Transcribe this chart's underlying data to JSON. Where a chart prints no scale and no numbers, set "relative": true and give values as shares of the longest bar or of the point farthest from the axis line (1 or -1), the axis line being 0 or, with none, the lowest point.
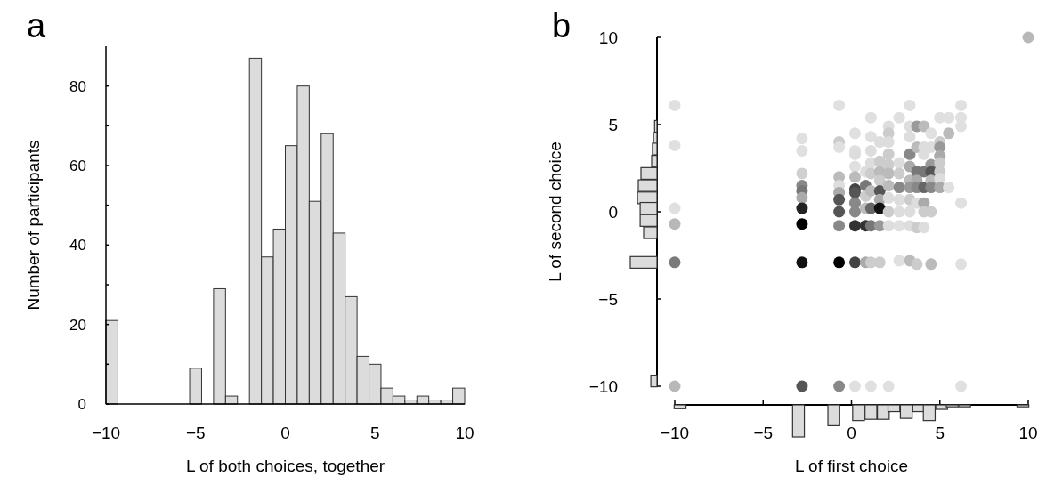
{
  "chart_data": [
    {
      "type": "histogram",
      "title": "a",
      "xlabel": "L of both choices, together",
      "ylabel": "Number of participants",
      "bins": [
        -10,
        -9.333,
        -8.667,
        -8,
        -7.333,
        -6.667,
        -6,
        -5.333,
        -4.667,
        -4,
        -3.333,
        -2.667,
        -2,
        -1.333,
        -0.667,
        0,
        0.667,
        1.333,
        2,
        2.667,
        3.333,
        4,
        4.667,
        5.333,
        6,
        6.667,
        7.333,
        8,
        8.667,
        9.333,
        10
      ],
      "values": [
        21,
        0,
        0,
        0,
        0,
        0,
        0,
        9,
        0,
        29,
        2,
        0,
        87,
        37,
        44,
        65,
        80,
        51,
        68,
        43,
        27,
        12,
        10,
        4,
        2,
        1,
        2,
        1,
        1,
        4
      ],
      "color": "#dcdcdc",
      "xlim": [
        -10,
        10
      ],
      "xticks": [
        -10,
        -5,
        0,
        5,
        10
      ],
      "ylim": [
        0,
        90
      ],
      "yticks": [
        0,
        {
          "value": 10,
          "label": null
        },
        20,
        {
          "value": 30,
          "label": null
        },
        40,
        {
          "value": 50,
          "label": null
        },
        60,
        {
          "value": 70,
          "label": null
        },
        80
      ]
    },
    {
      "type": "scatter",
      "title": "b",
      "xlabel": "L of first choice",
      "ylabel": "L of second choice",
      "marker": "circle",
      "xlim": [
        -10,
        10
      ],
      "xticks": [
        -10,
        -5,
        0,
        5,
        10
      ],
      "ylim": [
        -10,
        10
      ],
      "yticks": [
        -10,
        -5,
        0,
        5,
        10
      ],
      "x": [
        -10,
        -10,
        -10,
        -10,
        -10,
        -10,
        -2.8,
        -2.8,
        -2.8,
        -2.8,
        -2.8,
        -2.8,
        -2.8,
        -2.8,
        -2.8,
        -2.8,
        -0.7,
        -0.7,
        -0.7,
        -0.7,
        -0.7,
        -0.7,
        -0.7,
        -0.7,
        -0.7,
        -0.7,
        -0.7,
        0.2,
        0.2,
        0.2,
        0.2,
        0.2,
        0.2,
        0.2,
        0.2,
        0.2,
        0.2,
        0.2,
        0.2,
        0.8,
        0.8,
        0.8,
        0.8,
        0.8,
        0.8,
        1.1,
        1.1,
        1.1,
        1.1,
        1.1,
        1.1,
        1.1,
        1.1,
        1.1,
        1.1,
        1.6,
        1.6,
        1.6,
        1.6,
        1.6,
        1.6,
        1.6,
        1.6,
        1.6,
        2.1,
        2.1,
        2.1,
        2.1,
        2.1,
        2.1,
        2.1,
        2.1,
        2.1,
        2.1,
        2.1,
        2.7,
        2.7,
        2.7,
        2.7,
        2.7,
        2.7,
        2.7,
        2.7,
        3.3,
        3.3,
        3.3,
        3.3,
        3.3,
        3.3,
        3.3,
        3.3,
        3.3,
        3.3,
        3.3,
        3.7,
        3.7,
        3.7,
        3.7,
        3.7,
        3.7,
        3.7,
        3.7,
        4.1,
        4.1,
        4.1,
        4.1,
        4.1,
        4.1,
        4.1,
        4.1,
        4.5,
        4.5,
        4.5,
        4.5,
        4.5,
        4.5,
        4.5,
        4.5,
        5.0,
        5.0,
        5.0,
        5.0,
        5.0,
        5.0,
        5.0,
        5.0,
        5.5,
        5.5,
        5.5,
        6.2,
        6.2,
        6.2,
        6.2,
        6.2,
        6.2,
        10
      ],
      "values": [
        6.1,
        3.8,
        0.2,
        -0.7,
        -2.9,
        -10,
        4.2,
        3.5,
        2.2,
        1.5,
        1.2,
        0.8,
        0.2,
        -0.7,
        -2.9,
        -10,
        6.1,
        4.0,
        3.7,
        2.0,
        1.5,
        1.1,
        0.7,
        0.0,
        -0.8,
        -2.9,
        -10,
        4.5,
        3.5,
        3.3,
        2.6,
        2.0,
        1.3,
        1.1,
        0.5,
        0.0,
        -0.8,
        -2.9,
        -10,
        2.3,
        1.5,
        0.9,
        0.2,
        -0.8,
        -2.9,
        5.4,
        4.3,
        3.5,
        2.8,
        2.2,
        1.2,
        0.2,
        -0.8,
        -2.9,
        -10,
        4.0,
        2.9,
        2.3,
        1.8,
        1.2,
        0.7,
        0.2,
        -0.8,
        -2.9,
        4.9,
        4.5,
        4.0,
        3.3,
        2.7,
        2.2,
        1.5,
        0.8,
        0.0,
        -0.8,
        -10,
        5.4,
        2.8,
        2.2,
        1.4,
        0.7,
        0.0,
        -0.8,
        -2.8,
        6.1,
        4.9,
        4.3,
        3.3,
        2.6,
        1.8,
        1.4,
        0.7,
        0.0,
        -0.8,
        -2.8,
        4.9,
        3.7,
        2.3,
        1.8,
        1.4,
        0.5,
        -0.9,
        -3.0,
        4.9,
        3.7,
        3.3,
        2.3,
        1.4,
        0.5,
        0.0,
        -0.9,
        4.5,
        3.7,
        2.7,
        2.3,
        1.8,
        1.4,
        0.0,
        -3.0,
        5.4,
        4.0,
        3.7,
        3.2,
        2.8,
        2.3,
        1.9,
        1.4,
        5.4,
        4.5,
        1.4,
        6.1,
        5.4,
        4.9,
        0.5,
        -3.0,
        -10,
        10
      ],
      "colors": [
        "#e0e0e0",
        "#e0e0e0",
        "#e0e0e0",
        "#b8b8b8",
        "#7a7a7a",
        "#b8b8b8",
        "#e0e0e0",
        "#e0e0e0",
        "#d0d0d0",
        "#888888",
        "#777777",
        "#aaaaaa",
        "#222222",
        "#000000",
        "#111111",
        "#555555",
        "#e0e0e0",
        "#cccccc",
        "#e0e0e0",
        "#bbbbbb",
        "#dddddd",
        "#aaaaaa",
        "#555555",
        "#555555",
        "#888888",
        "#000000",
        "#888888",
        "#e0e0e0",
        "#e0e0e0",
        "#dddddd",
        "#e0e0e0",
        "#bbbbbb",
        "#444444",
        "#555555",
        "#888888",
        "#888888",
        "#333333",
        "#444444",
        "#e0e0e0",
        "#dddddd",
        "#777777",
        "#cccccc",
        "#bbbbbb",
        "#333333",
        "#aaaaaa",
        "#e0e0e0",
        "#e0e0e0",
        "#dddddd",
        "#dddddd",
        "#cccccc",
        "#bbbbbb",
        "#666666",
        "#777777",
        "#cccccc",
        "#e0e0e0",
        "#dddddd",
        "#cccccc",
        "#bbbbbb",
        "#cccccc",
        "#555555",
        "#aaaaaa",
        "#111111",
        "#999999",
        "#cccccc",
        "#dddddd",
        "#cccccc",
        "#dddddd",
        "#cccccc",
        "#cccccc",
        "#bbbbbb",
        "#bbbbbb",
        "#dddddd",
        "#cccccc",
        "#dddddd",
        "#e0e0e0",
        "#e0e0e0",
        "#dddddd",
        "#cccccc",
        "#888888",
        "#dddddd",
        "#dddddd",
        "#e0e0e0",
        "#e0e0e0",
        "#e0e0e0",
        "#dddddd",
        "#dddddd",
        "#888888",
        "#aaaaaa",
        "#bbbbbb",
        "#999999",
        "#cccccc",
        "#dddddd",
        "#dddddd",
        "#bbbbbb",
        "#999999",
        "#bbbbbb",
        "#777777",
        "#aaaaaa",
        "#888888",
        "#dddddd",
        "#cccccc",
        "#cccccc",
        "#bbbbbb",
        "#dddddd",
        "#dddddd",
        "#777777",
        "#666666",
        "#aaaaaa",
        "#cccccc",
        "#dddddd",
        "#e0e0e0",
        "#dddddd",
        "#999999",
        "#555555",
        "#bbbbbb",
        "#888888",
        "#cccccc",
        "#bbbbbb",
        "#e0e0e0",
        "#cccccc",
        "#999999",
        "#aaaaaa",
        "#cccccc",
        "#cccccc",
        "#dddddd",
        "#aaaaaa",
        "#e0e0e0",
        "#bbbbbb",
        "#e0e0e0",
        "#e0e0e0",
        "#e0e0e0",
        "#e0e0e0",
        "#e0e0e0",
        "#e0e0e0",
        "#e0e0e0",
        "#b8b8b8"
      ]
    },
    {
      "type": "bar",
      "orientation": "horizontal",
      "relative": true,
      "tick_labels": false,
      "color": "#dcdcdc",
      "ylim": [
        -10,
        10
      ],
      "x": [
        4.9,
        4.2,
        3.6,
        2.9,
        2.2,
        1.5,
        0.8,
        0.2,
        -0.5,
        -1.2,
        -2.9,
        -9.7
      ],
      "values": [
        -0.09,
        -0.13,
        -0.17,
        -0.2,
        -0.6,
        -0.7,
        -0.73,
        -0.63,
        -0.63,
        -0.5,
        -1,
        -0.23
      ]
    },
    {
      "type": "bar",
      "relative": true,
      "tick_labels": false,
      "color": "#dcdcdc",
      "xlim": [
        -10,
        10
      ],
      "x": [
        -9.7,
        -3.0,
        -1.0,
        0.4,
        1.1,
        1.8,
        2.4,
        3.1,
        3.8,
        4.4,
        5.1,
        5.7,
        6.4,
        9.7
      ],
      "values": [
        -0.12,
        -1,
        -0.65,
        -0.49,
        -0.45,
        -0.45,
        -0.21,
        -0.42,
        -0.21,
        -0.49,
        -0.14,
        -0.06,
        -0.06,
        -0.06
      ]
    }
  ]
}
